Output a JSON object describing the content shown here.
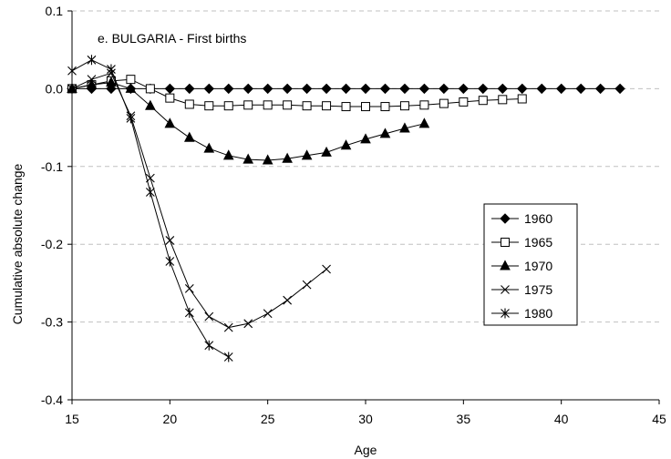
{
  "chart_data": {
    "type": "line",
    "annotation": "e. BULGARIA - First births",
    "xlabel": "Age",
    "ylabel": "Cumulative absolute change",
    "xlim": [
      15,
      45
    ],
    "ylim": [
      -0.4,
      0.1
    ],
    "x_ticks": [
      15,
      20,
      25,
      30,
      35,
      40,
      45
    ],
    "x_tick_labels": [
      "15",
      "20",
      "25",
      "30",
      "35",
      "40",
      "45"
    ],
    "y_ticks": [
      0.1,
      0.0,
      -0.1,
      -0.2,
      -0.3,
      -0.4
    ],
    "y_tick_labels": [
      "0.1",
      "0.0",
      "-0.1",
      "-0.2",
      "-0.3",
      "-0.4"
    ],
    "grid": "horizontal dashed",
    "legend_position": "right",
    "series": [
      {
        "name": "1960",
        "marker": "filled-diamond",
        "x": [
          15,
          16,
          17,
          18,
          19,
          20,
          21,
          22,
          23,
          24,
          25,
          26,
          27,
          28,
          29,
          30,
          31,
          32,
          33,
          34,
          35,
          36,
          37,
          38,
          39,
          40,
          41,
          42,
          43
        ],
        "y": [
          0.0,
          0.0,
          0.0,
          0.0,
          0.0,
          0.0,
          0.0,
          0.0,
          0.0,
          0.0,
          0.0,
          0.0,
          0.0,
          0.0,
          0.0,
          0.0,
          0.0,
          0.0,
          0.0,
          0.0,
          0.0,
          0.0,
          0.0,
          0.0,
          0.0,
          0.0,
          0.0,
          0.0,
          0.0
        ]
      },
      {
        "name": "1965",
        "marker": "open-square",
        "x": [
          15,
          16,
          17,
          18,
          19,
          20,
          21,
          22,
          23,
          24,
          25,
          26,
          27,
          28,
          29,
          30,
          31,
          32,
          33,
          34,
          35,
          36,
          37,
          38
        ],
        "y": [
          0.0,
          0.005,
          0.01,
          0.012,
          0.0,
          -0.012,
          -0.02,
          -0.022,
          -0.022,
          -0.021,
          -0.021,
          -0.021,
          -0.022,
          -0.022,
          -0.023,
          -0.023,
          -0.023,
          -0.022,
          -0.021,
          -0.019,
          -0.017,
          -0.015,
          -0.014,
          -0.013
        ]
      },
      {
        "name": "1970",
        "marker": "filled-triangle",
        "x": [
          15,
          16,
          17,
          18,
          19,
          20,
          21,
          22,
          23,
          24,
          25,
          26,
          27,
          28,
          29,
          30,
          31,
          32,
          33
        ],
        "y": [
          0.0,
          0.005,
          0.008,
          0.0,
          -0.022,
          -0.045,
          -0.063,
          -0.077,
          -0.086,
          -0.091,
          -0.092,
          -0.09,
          -0.086,
          -0.082,
          -0.073,
          -0.065,
          -0.058,
          -0.051,
          -0.045
        ]
      },
      {
        "name": "1975",
        "marker": "x",
        "x": [
          15,
          16,
          17,
          18,
          19,
          20,
          21,
          22,
          23,
          24,
          25,
          26,
          27,
          28
        ],
        "y": [
          0.0,
          0.012,
          0.02,
          -0.035,
          -0.115,
          -0.195,
          -0.257,
          -0.293,
          -0.307,
          -0.302,
          -0.289,
          -0.272,
          -0.252,
          -0.232
        ]
      },
      {
        "name": "1980",
        "marker": "star",
        "x": [
          15,
          16,
          17,
          18,
          19,
          20,
          21,
          22,
          23
        ],
        "y": [
          0.023,
          0.037,
          0.025,
          -0.038,
          -0.133,
          -0.222,
          -0.288,
          -0.33,
          -0.345
        ]
      }
    ]
  }
}
